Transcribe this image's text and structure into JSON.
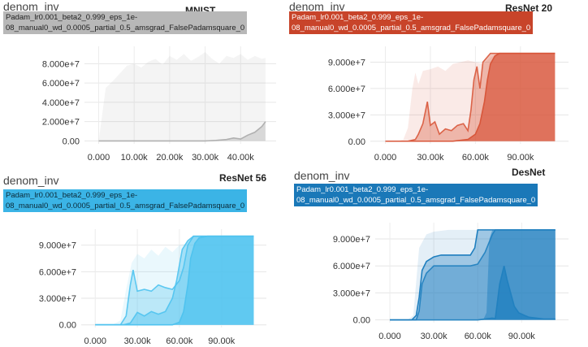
{
  "panel_label": "denom_inv",
  "run_label": [
    "Padam_lr0.001_beta2_0.999_eps_1e-",
    "08_manual0_wd_0.0005_partial_0.5_amsgrad_FalsePadamsquare_0"
  ],
  "chart_data": [
    {
      "type": "area",
      "title": "MNIST",
      "color": "#b0b0b0",
      "badge_bg": "#b8b8b8",
      "badge_fg": "#222222",
      "ylim": [
        -3000000,
        98000000
      ],
      "xlim": [
        -4000,
        50000
      ],
      "yticks": [
        0,
        20000000,
        40000000,
        60000000,
        80000000
      ],
      "ytick_labels": [
        "0.00",
        "2.000e+7",
        "4.000e+7",
        "6.000e+7",
        "8.000e+7"
      ],
      "xticks": [
        0,
        10000,
        20000,
        30000,
        40000
      ],
      "xtick_labels": [
        "0.000",
        "10.00k",
        "20.00k",
        "30.00k",
        "40.00k"
      ],
      "series": [
        {
          "x": [
            0,
            2000,
            4000,
            6000,
            8000,
            10000,
            12000,
            14000,
            16000,
            18000,
            20000,
            22000,
            24000,
            26000,
            28000,
            30000,
            32000,
            34000,
            36000,
            38000,
            40000,
            42000,
            44000,
            46000,
            47000
          ],
          "upper": [
            0,
            55000000,
            62000000,
            70000000,
            78000000,
            80000000,
            76000000,
            82000000,
            85000000,
            79000000,
            88000000,
            84000000,
            90000000,
            83000000,
            87000000,
            92000000,
            85000000,
            80000000,
            88000000,
            86000000,
            90000000,
            84000000,
            88000000,
            85000000,
            86000000
          ],
          "fill_opacity": 0.14,
          "line_opacity": 0.0
        },
        {
          "x": [
            0,
            5000,
            10000,
            15000,
            20000,
            25000,
            30000,
            33000,
            36000,
            38000,
            40000,
            42000,
            44000,
            46000,
            47000
          ],
          "upper": [
            0,
            0,
            0,
            0,
            0,
            0,
            0,
            500000,
            1500000,
            3000000,
            2000000,
            6000000,
            9000000,
            15000000,
            20000000
          ],
          "fill_opacity": 0.4,
          "line_opacity": 1.0
        }
      ]
    },
    {
      "type": "area",
      "title": "ResNet 20",
      "color": "#d8563a",
      "badge_bg": "#c8442a",
      "badge_fg": "#ffffff",
      "ylim": [
        -3000000,
        108000000
      ],
      "xlim": [
        -10000,
        122000
      ],
      "yticks": [
        0,
        30000000,
        60000000,
        90000000
      ],
      "ytick_labels": [
        "0.00",
        "3.000e+7",
        "6.000e+7",
        "9.000e+7"
      ],
      "xticks": [
        0,
        30000,
        60000,
        90000
      ],
      "xtick_labels": [
        "0.000",
        "30.00k",
        "60.00k",
        "90.00k"
      ],
      "series": [
        {
          "x": [
            0,
            8000,
            12000,
            15000,
            18000,
            20000,
            22000,
            25000,
            30000,
            35000,
            40000,
            45000,
            50000,
            55000,
            60000,
            65000,
            70000,
            75000,
            80000,
            85000,
            90000,
            100000,
            110000,
            113000
          ],
          "upper": [
            0,
            0,
            2000000,
            15000000,
            60000000,
            78000000,
            65000000,
            80000000,
            82000000,
            85000000,
            80000000,
            88000000,
            90000000,
            92000000,
            90000000,
            88000000,
            95000000,
            100000000,
            100000000,
            100000000,
            100000000,
            100000000,
            100000000,
            100000000
          ],
          "fill_opacity": 0.12,
          "line_opacity": 0.0
        },
        {
          "x": [
            0,
            15000,
            20000,
            22000,
            25000,
            28000,
            30000,
            33000,
            36000,
            40000,
            44000,
            48000,
            52000,
            55000,
            57000,
            59000,
            61000,
            63000,
            65000,
            70000,
            80000,
            90000,
            100000,
            113000
          ],
          "upper": [
            0,
            0,
            2000000,
            8000000,
            20000000,
            45000000,
            18000000,
            22000000,
            8000000,
            14000000,
            12000000,
            18000000,
            20000000,
            12000000,
            35000000,
            70000000,
            85000000,
            60000000,
            90000000,
            100000000,
            100000000,
            100000000,
            100000000,
            100000000
          ],
          "fill_opacity": 0.35,
          "line_opacity": 0.9
        },
        {
          "x": [
            0,
            30000,
            45000,
            55000,
            60000,
            63000,
            66000,
            68000,
            70000,
            73000,
            76000,
            80000,
            90000,
            100000,
            113000
          ],
          "upper": [
            0,
            0,
            0,
            2000000,
            8000000,
            20000000,
            45000000,
            70000000,
            88000000,
            97000000,
            100000000,
            100000000,
            100000000,
            100000000,
            100000000
          ],
          "fill_opacity": 0.7,
          "line_opacity": 1.0
        }
      ]
    },
    {
      "type": "area",
      "title": "ResNet 56",
      "color": "#4fc3ef",
      "badge_bg": "#3bb4e6",
      "badge_fg": "#0b2a38",
      "ylim": [
        -3000000,
        108000000
      ],
      "xlim": [
        -10000,
        122000
      ],
      "yticks": [
        0,
        30000000,
        60000000,
        90000000
      ],
      "ytick_labels": [
        "0.00",
        "3.000e+7",
        "6.000e+7",
        "9.000e+7"
      ],
      "xticks": [
        0,
        30000,
        60000,
        90000
      ],
      "xtick_labels": [
        "0.000",
        "30.00k",
        "60.00k",
        "90.00k"
      ],
      "series": [
        {
          "x": [
            0,
            12000,
            18000,
            22000,
            26000,
            30000,
            35000,
            40000,
            45000,
            50000,
            55000,
            60000,
            65000,
            70000,
            80000,
            90000,
            100000,
            113000
          ],
          "upper": [
            0,
            0,
            5000000,
            40000000,
            70000000,
            80000000,
            75000000,
            85000000,
            78000000,
            88000000,
            82000000,
            90000000,
            92000000,
            100000000,
            100000000,
            100000000,
            100000000,
            100000000
          ],
          "fill_opacity": 0.12,
          "line_opacity": 0.0
        },
        {
          "x": [
            0,
            18000,
            22000,
            25000,
            27000,
            30000,
            35000,
            40000,
            45000,
            50000,
            55000,
            60000,
            63000,
            66000,
            70000,
            80000,
            100000,
            113000
          ],
          "upper": [
            0,
            0,
            10000000,
            45000000,
            62000000,
            38000000,
            40000000,
            38000000,
            45000000,
            42000000,
            40000000,
            50000000,
            65000000,
            90000000,
            100000000,
            100000000,
            100000000,
            100000000
          ],
          "fill_opacity": 0.3,
          "line_opacity": 0.9
        },
        {
          "x": [
            0,
            20000,
            25000,
            30000,
            35000,
            40000,
            45000,
            50000,
            55000,
            58000,
            62000,
            66000,
            70000,
            75000,
            80000,
            100000,
            113000
          ],
          "upper": [
            0,
            0,
            2000000,
            14000000,
            10000000,
            15000000,
            12000000,
            15000000,
            30000000,
            50000000,
            85000000,
            95000000,
            100000000,
            100000000,
            100000000,
            100000000,
            100000000
          ],
          "fill_opacity": 0.45,
          "line_opacity": 0.9
        },
        {
          "x": [
            0,
            40000,
            55000,
            60000,
            63000,
            66000,
            68000,
            71000,
            74000,
            80000,
            100000,
            113000
          ],
          "upper": [
            0,
            0,
            0,
            3000000,
            15000000,
            45000000,
            75000000,
            92000000,
            98000000,
            100000000,
            100000000,
            100000000
          ],
          "fill_opacity": 0.7,
          "line_opacity": 1.0
        }
      ]
    },
    {
      "type": "area",
      "title": "DesNet",
      "color": "#1f7fbf",
      "badge_bg": "#1a78b8",
      "badge_fg": "#ffffff",
      "ylim": [
        -3000000,
        108000000
      ],
      "xlim": [
        -10000,
        122000
      ],
      "yticks": [
        0,
        30000000,
        60000000,
        90000000
      ],
      "ytick_labels": [
        "0.00",
        "3.000e+7",
        "6.000e+7",
        "9.000e+7"
      ],
      "xticks": [
        0,
        30000,
        60000,
        90000
      ],
      "xtick_labels": [
        "0.000",
        "30.00k",
        "60.00k",
        "90.00k"
      ],
      "series": [
        {
          "x": [
            0,
            12000,
            16000,
            20000,
            25000,
            30000,
            40000,
            50000,
            60000,
            65000,
            70000,
            80000,
            100000,
            113000
          ],
          "upper": [
            0,
            0,
            5000000,
            80000000,
            95000000,
            98000000,
            100000000,
            100000000,
            100000000,
            100000000,
            100000000,
            100000000,
            100000000,
            100000000
          ],
          "fill_opacity": 0.12,
          "line_opacity": 0.0
        },
        {
          "x": [
            0,
            15000,
            18000,
            20000,
            22000,
            25000,
            30000,
            35000,
            40000,
            45000,
            50000,
            55000,
            58000,
            60000,
            63000,
            70000,
            80000,
            100000,
            113000
          ],
          "upper": [
            0,
            0,
            5000000,
            25000000,
            55000000,
            65000000,
            70000000,
            72000000,
            72000000,
            72000000,
            72000000,
            72000000,
            80000000,
            100000000,
            100000000,
            100000000,
            100000000,
            100000000,
            100000000
          ],
          "fill_opacity": 0.35,
          "line_opacity": 1.0
        },
        {
          "x": [
            0,
            18000,
            20000,
            22000,
            25000,
            30000,
            40000,
            50000,
            55000,
            60000,
            65000,
            70000,
            72000,
            75000,
            78000,
            82000,
            90000,
            100000,
            113000
          ],
          "upper": [
            0,
            0,
            10000000,
            40000000,
            52000000,
            60000000,
            60000000,
            60000000,
            60000000,
            62000000,
            75000000,
            95000000,
            100000000,
            100000000,
            100000000,
            100000000,
            100000000,
            100000000,
            100000000
          ],
          "fill_opacity": 0.35,
          "line_opacity": 0.9
        },
        {
          "x": [
            0,
            50000,
            60000,
            62000,
            64000,
            66000,
            68000,
            70000,
            72000,
            74000,
            76000,
            78000,
            80000,
            85000,
            90000,
            100000,
            113000
          ],
          "upper": [
            0,
            0,
            0,
            500000,
            1000000,
            8000000,
            90000000,
            100000000,
            100000000,
            100000000,
            100000000,
            100000000,
            100000000,
            100000000,
            100000000,
            100000000,
            100000000
          ],
          "fill_opacity": 0.5,
          "line_opacity": 0.0
        },
        {
          "x": [
            0,
            50000,
            60000,
            65000,
            70000,
            72000,
            75000,
            78000,
            80000,
            85000,
            88000,
            92000,
            95000,
            100000,
            105000,
            113000
          ],
          "upper": [
            0,
            0,
            0,
            1000000,
            2000000,
            1500000,
            40000000,
            60000000,
            45000000,
            15000000,
            8000000,
            5000000,
            3000000,
            2000000,
            1000000,
            1000000
          ],
          "fill_opacity": 0.7,
          "line_opacity": 0.9
        }
      ]
    }
  ]
}
